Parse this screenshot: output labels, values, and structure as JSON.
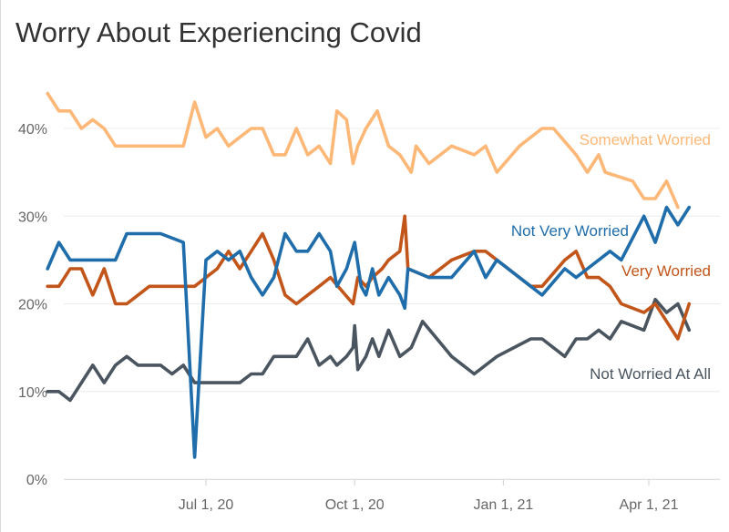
{
  "chart_data": {
    "type": "line",
    "title": "Worry About Experiencing Covid",
    "xlabel": "",
    "ylabel": "",
    "ylim": [
      0,
      45
    ],
    "yticks": [
      0,
      10,
      20,
      30,
      40
    ],
    "ytick_labels": [
      "0%",
      "10%",
      "20%",
      "30%",
      "40%"
    ],
    "xlim": [
      "2020-03-18",
      "2021-05-05"
    ],
    "xticks": [
      "2020-07-01",
      "2020-10-01",
      "2021-01-01",
      "2021-04-01"
    ],
    "xtick_labels": [
      "Jul 1, 20",
      "Oct 1, 20",
      "Jan 1, 21",
      "Apr 1, 21"
    ],
    "grid": "horizontal",
    "legend": "direct-labels",
    "series": [
      {
        "name": "Somewhat Worried",
        "color": "#FDB878",
        "points": [
          [
            "2020-03-25",
            44
          ],
          [
            "2020-04-01",
            42
          ],
          [
            "2020-04-08",
            42
          ],
          [
            "2020-04-15",
            40
          ],
          [
            "2020-04-22",
            41
          ],
          [
            "2020-04-29",
            40
          ],
          [
            "2020-05-06",
            38
          ],
          [
            "2020-05-13",
            38
          ],
          [
            "2020-05-20",
            38
          ],
          [
            "2020-05-27",
            38
          ],
          [
            "2020-06-03",
            38
          ],
          [
            "2020-06-17",
            38
          ],
          [
            "2020-06-24",
            43
          ],
          [
            "2020-07-01",
            39
          ],
          [
            "2020-07-08",
            40
          ],
          [
            "2020-07-15",
            38
          ],
          [
            "2020-07-22",
            39
          ],
          [
            "2020-07-29",
            40
          ],
          [
            "2020-08-05",
            40
          ],
          [
            "2020-08-12",
            37
          ],
          [
            "2020-08-19",
            37
          ],
          [
            "2020-08-26",
            40
          ],
          [
            "2020-09-02",
            37
          ],
          [
            "2020-09-09",
            38
          ],
          [
            "2020-09-16",
            36
          ],
          [
            "2020-09-20",
            42
          ],
          [
            "2020-09-26",
            41
          ],
          [
            "2020-09-30",
            36
          ],
          [
            "2020-10-03",
            38
          ],
          [
            "2020-10-08",
            40
          ],
          [
            "2020-10-15",
            42
          ],
          [
            "2020-10-22",
            38
          ],
          [
            "2020-10-29",
            37
          ],
          [
            "2020-11-05",
            35
          ],
          [
            "2020-11-08",
            38
          ],
          [
            "2020-11-16",
            36
          ],
          [
            "2020-11-30",
            38
          ],
          [
            "2020-12-14",
            37
          ],
          [
            "2020-12-21",
            38
          ],
          [
            "2020-12-28",
            35
          ],
          [
            "2021-01-11",
            38
          ],
          [
            "2021-01-25",
            40
          ],
          [
            "2021-02-01",
            40
          ],
          [
            "2021-02-15",
            37
          ],
          [
            "2021-02-22",
            35
          ],
          [
            "2021-03-01",
            37
          ],
          [
            "2021-03-05",
            35
          ],
          [
            "2021-03-22",
            34
          ],
          [
            "2021-03-29",
            32
          ],
          [
            "2021-04-05",
            32
          ],
          [
            "2021-04-12",
            34
          ],
          [
            "2021-04-19",
            31
          ]
        ]
      },
      {
        "name": "Not Very Worried",
        "color": "#1F6DAA",
        "points": [
          [
            "2020-03-25",
            24
          ],
          [
            "2020-04-01",
            27
          ],
          [
            "2020-04-08",
            25
          ],
          [
            "2020-04-22",
            25
          ],
          [
            "2020-05-06",
            25
          ],
          [
            "2020-05-13",
            28
          ],
          [
            "2020-05-20",
            28
          ],
          [
            "2020-06-03",
            28
          ],
          [
            "2020-06-17",
            27
          ],
          [
            "2020-06-24",
            2.5
          ],
          [
            "2020-07-01",
            25
          ],
          [
            "2020-07-08",
            26
          ],
          [
            "2020-07-15",
            25
          ],
          [
            "2020-07-22",
            26
          ],
          [
            "2020-07-29",
            23
          ],
          [
            "2020-08-05",
            21
          ],
          [
            "2020-08-12",
            23
          ],
          [
            "2020-08-19",
            28
          ],
          [
            "2020-08-26",
            26
          ],
          [
            "2020-09-02",
            26
          ],
          [
            "2020-09-09",
            28
          ],
          [
            "2020-09-16",
            26
          ],
          [
            "2020-09-20",
            22
          ],
          [
            "2020-09-26",
            24
          ],
          [
            "2020-10-01",
            27
          ],
          [
            "2020-10-05",
            22
          ],
          [
            "2020-10-08",
            21
          ],
          [
            "2020-10-12",
            24
          ],
          [
            "2020-10-16",
            21
          ],
          [
            "2020-10-22",
            23
          ],
          [
            "2020-10-29",
            21
          ],
          [
            "2020-11-01",
            19.5
          ],
          [
            "2020-11-03",
            24
          ],
          [
            "2020-11-16",
            23
          ],
          [
            "2020-11-23",
            23
          ],
          [
            "2020-11-30",
            23
          ],
          [
            "2020-12-14",
            26
          ],
          [
            "2020-12-21",
            23
          ],
          [
            "2020-12-28",
            25
          ],
          [
            "2021-01-18",
            22
          ],
          [
            "2021-01-25",
            21
          ],
          [
            "2021-02-08",
            24
          ],
          [
            "2021-02-15",
            23
          ],
          [
            "2021-02-22",
            24
          ],
          [
            "2021-03-01",
            25
          ],
          [
            "2021-03-08",
            26
          ],
          [
            "2021-03-15",
            25
          ],
          [
            "2021-03-29",
            30
          ],
          [
            "2021-04-05",
            27
          ],
          [
            "2021-04-12",
            31
          ],
          [
            "2021-04-19",
            29
          ],
          [
            "2021-04-26",
            31
          ]
        ]
      },
      {
        "name": "Very Worried",
        "color": "#C2561A",
        "points": [
          [
            "2020-03-25",
            22
          ],
          [
            "2020-04-01",
            22
          ],
          [
            "2020-04-08",
            24
          ],
          [
            "2020-04-15",
            24
          ],
          [
            "2020-04-22",
            21
          ],
          [
            "2020-04-29",
            24
          ],
          [
            "2020-05-06",
            20
          ],
          [
            "2020-05-13",
            20
          ],
          [
            "2020-05-20",
            21
          ],
          [
            "2020-05-27",
            22
          ],
          [
            "2020-06-10",
            22
          ],
          [
            "2020-06-24",
            22
          ],
          [
            "2020-07-01",
            23
          ],
          [
            "2020-07-08",
            24
          ],
          [
            "2020-07-15",
            26
          ],
          [
            "2020-07-22",
            24
          ],
          [
            "2020-07-29",
            26
          ],
          [
            "2020-08-05",
            28
          ],
          [
            "2020-08-12",
            25
          ],
          [
            "2020-08-19",
            21
          ],
          [
            "2020-08-26",
            20
          ],
          [
            "2020-09-02",
            21
          ],
          [
            "2020-09-09",
            22
          ],
          [
            "2020-09-16",
            23
          ],
          [
            "2020-09-30",
            20
          ],
          [
            "2020-10-03",
            23
          ],
          [
            "2020-10-08",
            22
          ],
          [
            "2020-10-12",
            23
          ],
          [
            "2020-10-18",
            24
          ],
          [
            "2020-10-22",
            25
          ],
          [
            "2020-10-29",
            26
          ],
          [
            "2020-11-01",
            30
          ],
          [
            "2020-11-03",
            24
          ],
          [
            "2020-11-16",
            23
          ],
          [
            "2020-11-30",
            25
          ],
          [
            "2020-12-14",
            26
          ],
          [
            "2020-12-21",
            26
          ],
          [
            "2020-12-28",
            25
          ],
          [
            "2021-01-18",
            22
          ],
          [
            "2021-01-25",
            22
          ],
          [
            "2021-02-08",
            25
          ],
          [
            "2021-02-15",
            26
          ],
          [
            "2021-02-22",
            23
          ],
          [
            "2021-03-01",
            23
          ],
          [
            "2021-03-08",
            22
          ],
          [
            "2021-03-15",
            20
          ],
          [
            "2021-03-29",
            19
          ],
          [
            "2021-04-05",
            20
          ],
          [
            "2021-04-12",
            18
          ],
          [
            "2021-04-19",
            16
          ],
          [
            "2021-04-26",
            20
          ]
        ]
      },
      {
        "name": "Not Worried At All",
        "color": "#4A5560",
        "points": [
          [
            "2020-03-25",
            10
          ],
          [
            "2020-04-01",
            10
          ],
          [
            "2020-04-08",
            9
          ],
          [
            "2020-04-22",
            13
          ],
          [
            "2020-04-29",
            11
          ],
          [
            "2020-05-06",
            13
          ],
          [
            "2020-05-13",
            14
          ],
          [
            "2020-05-20",
            13
          ],
          [
            "2020-05-27",
            13
          ],
          [
            "2020-06-03",
            13
          ],
          [
            "2020-06-10",
            12
          ],
          [
            "2020-06-17",
            13
          ],
          [
            "2020-06-24",
            11
          ],
          [
            "2020-07-08",
            11
          ],
          [
            "2020-07-15",
            11
          ],
          [
            "2020-07-22",
            11
          ],
          [
            "2020-07-29",
            12
          ],
          [
            "2020-08-05",
            12
          ],
          [
            "2020-08-12",
            14
          ],
          [
            "2020-08-19",
            14
          ],
          [
            "2020-08-26",
            14
          ],
          [
            "2020-09-02",
            16
          ],
          [
            "2020-09-09",
            13
          ],
          [
            "2020-09-16",
            14
          ],
          [
            "2020-09-20",
            13
          ],
          [
            "2020-09-26",
            14
          ],
          [
            "2020-09-30",
            15
          ],
          [
            "2020-10-01",
            17.5
          ],
          [
            "2020-10-03",
            12.5
          ],
          [
            "2020-10-08",
            14
          ],
          [
            "2020-10-12",
            16
          ],
          [
            "2020-10-16",
            14
          ],
          [
            "2020-10-22",
            17
          ],
          [
            "2020-10-29",
            14
          ],
          [
            "2020-11-05",
            15
          ],
          [
            "2020-11-12",
            18
          ],
          [
            "2020-11-30",
            14
          ],
          [
            "2020-12-14",
            12
          ],
          [
            "2020-12-28",
            14
          ],
          [
            "2021-01-18",
            16
          ],
          [
            "2021-01-25",
            16
          ],
          [
            "2021-02-08",
            14
          ],
          [
            "2021-02-15",
            16
          ],
          [
            "2021-02-22",
            16
          ],
          [
            "2021-03-01",
            17
          ],
          [
            "2021-03-08",
            16
          ],
          [
            "2021-03-15",
            18
          ],
          [
            "2021-03-29",
            17
          ],
          [
            "2021-04-05",
            20.5
          ],
          [
            "2021-04-12",
            19
          ],
          [
            "2021-04-19",
            20
          ],
          [
            "2021-04-26",
            17
          ]
        ]
      }
    ]
  }
}
